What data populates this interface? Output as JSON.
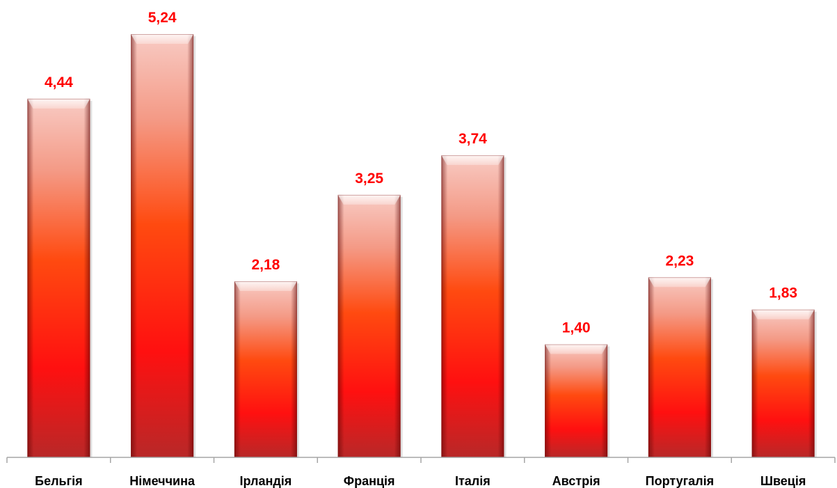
{
  "chart_data": {
    "type": "bar",
    "categories": [
      "Бельгія",
      "Німеччина",
      "Ірландія",
      "Франція",
      "Італія",
      "Австрія",
      "Португалія",
      "Швеція"
    ],
    "values": [
      4.44,
      5.24,
      2.18,
      3.25,
      3.74,
      1.4,
      2.23,
      1.83
    ],
    "data_labels": [
      "4,44",
      "5,24",
      "2,18",
      "3,25",
      "3,74",
      "1,40",
      "2,23",
      "1,83"
    ],
    "title": "",
    "xlabel": "",
    "ylabel": "",
    "ylim": [
      0,
      5.24
    ],
    "grid": false,
    "legend": "none",
    "colors": {
      "bar_top": "#f8c8c0",
      "bar_mid": "#ff4a10",
      "bar_low": "#ff1010",
      "bar_bottom": "#b82828",
      "label": "#ff0000",
      "axis": "#a6a6a6"
    }
  }
}
